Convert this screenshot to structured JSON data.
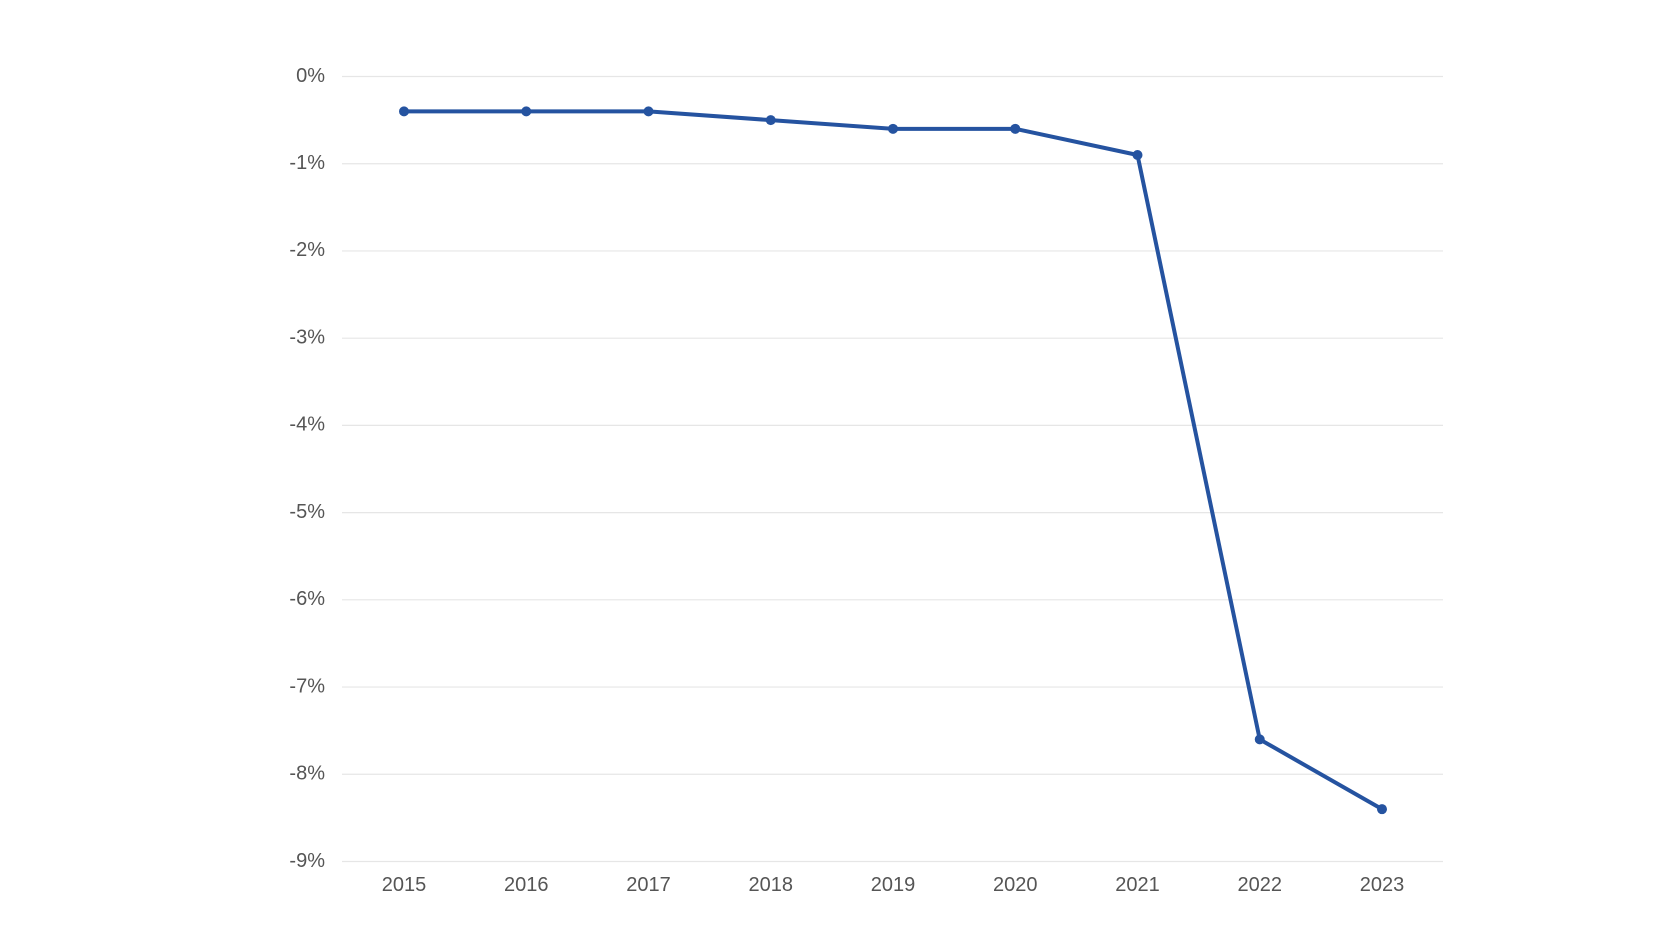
{
  "chart_data": {
    "type": "line",
    "categories": [
      "2015",
      "2016",
      "2017",
      "2018",
      "2019",
      "2020",
      "2021",
      "2022",
      "2023"
    ],
    "series": [
      {
        "color": "#2553a0",
        "values": [
          -0.4,
          -0.4,
          -0.4,
          -0.5,
          -0.6,
          -0.6,
          -0.9,
          -7.6,
          -8.4
        ]
      }
    ],
    "ylim": [
      -9,
      0
    ],
    "yticks": [
      {
        "value": 0,
        "label": "0%"
      },
      {
        "value": -1,
        "label": "-1%"
      },
      {
        "value": -2,
        "label": "-2%"
      },
      {
        "value": -3,
        "label": "-3%"
      },
      {
        "value": -4,
        "label": "-4%"
      },
      {
        "value": -5,
        "label": "-5%"
      },
      {
        "value": -6,
        "label": "-6%"
      },
      {
        "value": -7,
        "label": "-7%"
      },
      {
        "value": -8,
        "label": "-8%"
      },
      {
        "value": -9,
        "label": "-9%"
      }
    ],
    "grid": true
  }
}
